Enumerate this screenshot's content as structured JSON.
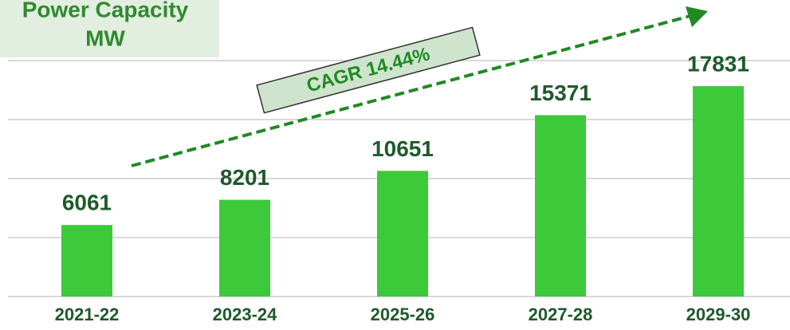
{
  "chart_data": {
    "type": "bar",
    "title": "Power Capacity",
    "subtitle": "MW",
    "annotation": "CAGR 14.44%",
    "categories": [
      "2021-22",
      "2023-24",
      "2025-26",
      "2027-28",
      "2029-30"
    ],
    "values": [
      6061,
      8201,
      10651,
      15371,
      17831
    ],
    "color": "#3cc93a",
    "ylim": [
      0,
      20000
    ],
    "yticks": [
      0,
      5000,
      10000,
      15000,
      20000
    ],
    "grid": true
  }
}
